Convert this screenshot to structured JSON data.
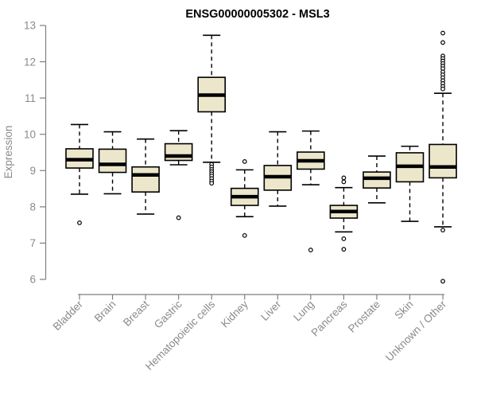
{
  "title": "ENSG00000005302 - MSL3",
  "chart_data": {
    "type": "boxplot",
    "title": "ENSG00000005302 - MSL3",
    "xlabel": "",
    "ylabel": "Expression",
    "ylim": [
      6,
      13
    ],
    "yticks": [
      6,
      7,
      8,
      9,
      10,
      11,
      12,
      13
    ],
    "grid": false,
    "legend": false,
    "categories": [
      "Bladder",
      "Brain",
      "Breast",
      "Gastric",
      "Hematopoietic cells",
      "Kidney",
      "Liver",
      "Lung",
      "Pancreas",
      "Prostate",
      "Skin",
      "Unknown / Other"
    ],
    "series": [
      {
        "name": "Bladder",
        "low": 8.35,
        "q1": 9.07,
        "median": 9.3,
        "q3": 9.6,
        "high": 10.27,
        "outliers": [
          7.56
        ]
      },
      {
        "name": "Brain",
        "low": 8.36,
        "q1": 8.95,
        "median": 9.17,
        "q3": 9.59,
        "high": 10.07,
        "outliers": []
      },
      {
        "name": "Breast",
        "low": 7.8,
        "q1": 8.41,
        "median": 8.88,
        "q3": 9.1,
        "high": 9.87,
        "outliers": []
      },
      {
        "name": "Gastric",
        "low": 9.16,
        "q1": 9.28,
        "median": 9.4,
        "q3": 9.74,
        "high": 10.1,
        "outliers": [
          7.7
        ]
      },
      {
        "name": "Hematopoietic cells",
        "low": 9.23,
        "q1": 10.62,
        "median": 11.08,
        "q3": 11.57,
        "high": 12.73,
        "outliers": [
          9.17,
          9.1,
          9.03,
          8.97,
          8.91,
          8.85,
          8.78,
          8.71,
          8.65
        ]
      },
      {
        "name": "Kidney",
        "low": 7.73,
        "q1": 8.04,
        "median": 8.28,
        "q3": 8.51,
        "high": 9.02,
        "outliers": [
          9.25,
          7.21
        ]
      },
      {
        "name": "Liver",
        "low": 8.02,
        "q1": 8.46,
        "median": 8.83,
        "q3": 9.14,
        "high": 10.07,
        "outliers": []
      },
      {
        "name": "Lung",
        "low": 8.61,
        "q1": 9.04,
        "median": 9.27,
        "q3": 9.51,
        "high": 10.09,
        "outliers": [
          6.81
        ]
      },
      {
        "name": "Pancreas",
        "low": 7.31,
        "q1": 7.69,
        "median": 7.87,
        "q3": 8.04,
        "high": 8.53,
        "outliers": [
          8.8,
          8.69,
          7.12,
          6.83
        ]
      },
      {
        "name": "Prostate",
        "low": 8.11,
        "q1": 8.52,
        "median": 8.79,
        "q3": 8.96,
        "high": 9.4,
        "outliers": []
      },
      {
        "name": "Skin",
        "low": 7.6,
        "q1": 8.69,
        "median": 9.12,
        "q3": 9.49,
        "high": 9.67,
        "outliers": []
      },
      {
        "name": "Unknown / Other",
        "low": 7.45,
        "q1": 8.8,
        "median": 9.1,
        "q3": 9.72,
        "high": 11.13,
        "outliers": [
          12.79,
          12.53,
          12.16,
          12.09,
          12.02,
          11.95,
          11.88,
          11.81,
          11.72,
          11.64,
          11.56,
          11.48,
          11.4,
          11.32,
          11.25,
          7.36,
          5.95
        ]
      }
    ],
    "colors": {
      "box_fill": "#ECE7CB",
      "box_stroke": "#000000",
      "median": "#000000",
      "whisker": "#000000",
      "outlier_stroke": "#000000",
      "outlier_fill": "#ffffff",
      "axis": "#7f7f7f",
      "tick_label": "#8a8a8a",
      "title": "#000000",
      "background": "#ffffff"
    }
  }
}
